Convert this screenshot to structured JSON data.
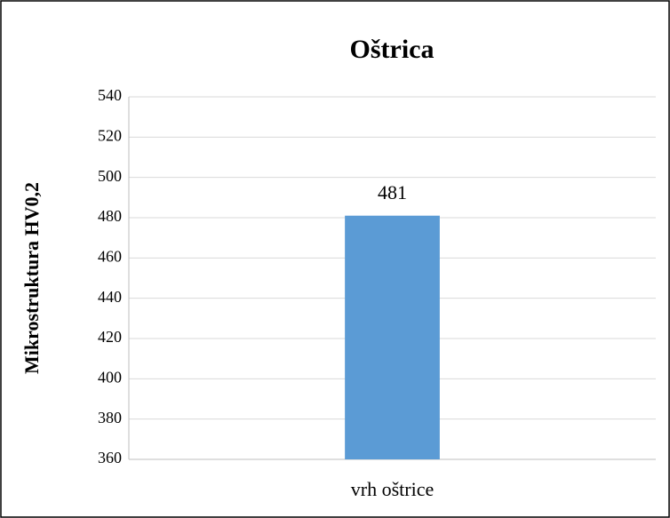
{
  "chart_data": {
    "type": "bar",
    "title": "Oštrica",
    "y_label": "Mikrostruktura HV0,2",
    "categories": [
      "vrh oštrice"
    ],
    "values": [
      481
    ],
    "color": "#5b9bd5",
    "ylim": [
      360,
      540
    ],
    "yticks": [
      360,
      380,
      400,
      420,
      440,
      460,
      480,
      500,
      520,
      540
    ],
    "grid": true
  }
}
